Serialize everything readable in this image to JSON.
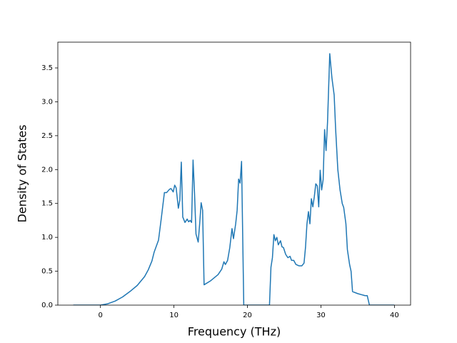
{
  "chart_data": {
    "type": "line",
    "xlabel": "Frequency (THz)",
    "ylabel": "Density of States",
    "color": "#1f77b4",
    "x": [
      -3.7,
      0,
      1,
      2,
      3,
      4,
      5,
      6,
      6.5,
      7,
      7.3,
      7.9,
      8.3,
      8.7,
      9,
      9.4,
      9.6,
      9.9,
      10.1,
      10.3,
      10.6,
      10.8,
      11.0,
      11.2,
      11.5,
      11.8,
      12.0,
      12.2,
      12.4,
      12.6,
      12.8,
      13.0,
      13.3,
      13.5,
      13.7,
      13.9,
      14.1,
      15,
      16,
      16.5,
      16.8,
      17.0,
      17.3,
      17.6,
      17.9,
      18.1,
      18.4,
      18.6,
      18.8,
      19.0,
      19.2,
      19.5,
      23.0,
      23.2,
      23.4,
      23.6,
      23.8,
      24.0,
      24.2,
      24.5,
      24.7,
      24.9,
      25.2,
      25.5,
      25.8,
      26.0,
      26.3,
      26.6,
      27.0,
      27.4,
      27.7,
      27.9,
      28.1,
      28.3,
      28.5,
      28.7,
      28.9,
      29.1,
      29.3,
      29.5,
      29.7,
      29.9,
      30.1,
      30.3,
      30.5,
      30.7,
      30.9,
      31.2,
      31.5,
      31.8,
      32.0,
      32.3,
      32.6,
      32.9,
      33.1,
      33.4,
      33.6,
      33.9,
      34.1,
      34.3,
      35,
      36,
      36.3,
      36.6,
      40
    ],
    "values": [
      0,
      0,
      0.02,
      0.06,
      0.12,
      0.2,
      0.29,
      0.42,
      0.52,
      0.65,
      0.78,
      0.96,
      1.3,
      1.66,
      1.66,
      1.71,
      1.72,
      1.67,
      1.77,
      1.73,
      1.43,
      1.55,
      2.11,
      1.3,
      1.22,
      1.27,
      1.23,
      1.25,
      1.22,
      2.14,
      1.65,
      1.05,
      0.93,
      1.2,
      1.51,
      1.4,
      0.3,
      0.36,
      0.45,
      0.53,
      0.64,
      0.6,
      0.66,
      0.85,
      1.13,
      0.98,
      1.2,
      1.4,
      1.86,
      1.8,
      2.12,
      0,
      0,
      0.56,
      0.7,
      1.04,
      0.95,
      1.0,
      0.89,
      0.95,
      0.86,
      0.85,
      0.75,
      0.7,
      0.72,
      0.66,
      0.66,
      0.6,
      0.58,
      0.58,
      0.62,
      0.85,
      1.2,
      1.38,
      1.2,
      1.57,
      1.45,
      1.6,
      1.79,
      1.76,
      1.45,
      1.99,
      1.7,
      1.85,
      2.59,
      2.28,
      2.7,
      3.71,
      3.35,
      3.1,
      2.6,
      2.0,
      1.7,
      1.5,
      1.44,
      1.2,
      0.82,
      0.6,
      0.5,
      0.2,
      0.17,
      0.14,
      0.14,
      0,
      0
    ],
    "xlim": [
      -5.8,
      42.2
    ],
    "xticks": [
      0,
      10,
      20,
      30,
      40
    ],
    "ylim": [
      0,
      3.88
    ],
    "yticks": [
      {
        "value": 0,
        "label": "0.0"
      },
      {
        "value": 0.5,
        "label": "0.5"
      },
      {
        "value": 1,
        "label": "1.0"
      },
      {
        "value": 1.5,
        "label": "1.5"
      },
      {
        "value": 2,
        "label": "2.0"
      },
      {
        "value": 2.5,
        "label": "2.5"
      },
      {
        "value": 3,
        "label": "3.0"
      },
      {
        "value": 3.5,
        "label": "3.5"
      }
    ]
  }
}
